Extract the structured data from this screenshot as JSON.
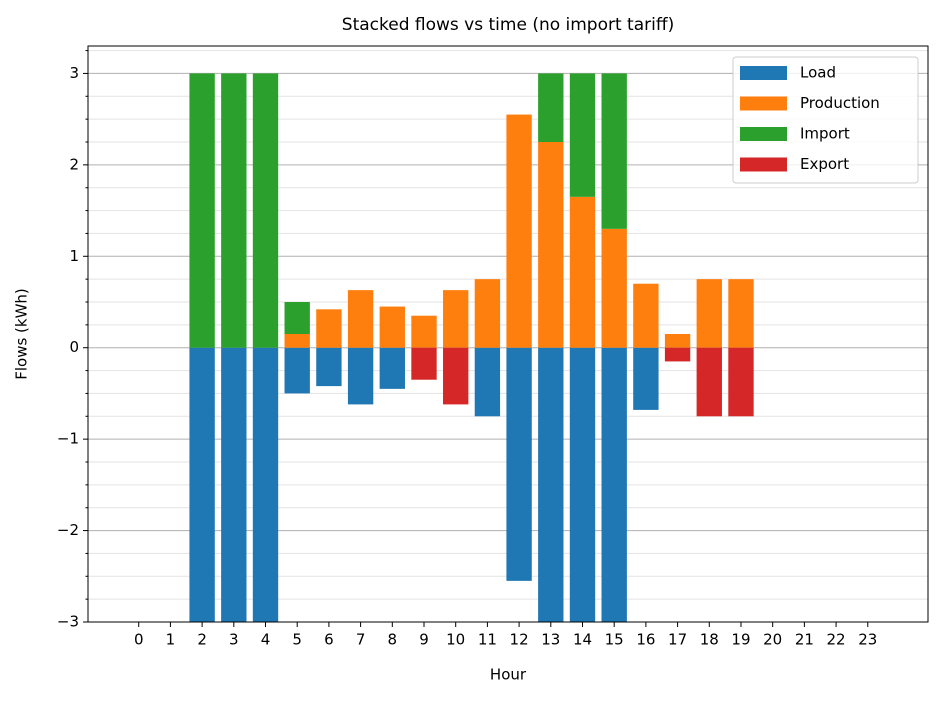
{
  "chart_data": {
    "type": "stacked_bar",
    "title": "Stacked flows vs time (no import tariff)",
    "xlabel": "Hour",
    "ylabel": "Flows (kWh)",
    "categories": [
      "0",
      "1",
      "2",
      "3",
      "4",
      "5",
      "6",
      "7",
      "8",
      "9",
      "10",
      "11",
      "12",
      "13",
      "14",
      "15",
      "16",
      "17",
      "18",
      "19",
      "20",
      "21",
      "22",
      "23"
    ],
    "series": [
      {
        "name": "Load",
        "color": "#1f77b4",
        "values": [
          0,
          0,
          -3,
          -3,
          -3,
          -0.5,
          -0.42,
          -0.62,
          -0.45,
          0,
          0,
          -0.75,
          -2.55,
          -3,
          -3,
          -3,
          -0.68,
          0,
          0,
          0,
          0,
          0,
          0,
          0
        ]
      },
      {
        "name": "Production",
        "color": "#ff7f0e",
        "values": [
          0,
          0,
          0,
          0,
          0,
          0.15,
          0.42,
          0.63,
          0.45,
          0.35,
          0.63,
          0.75,
          2.55,
          2.25,
          1.65,
          1.3,
          0.7,
          0.15,
          0.75,
          0.75,
          0,
          0,
          0,
          0
        ]
      },
      {
        "name": "Import",
        "color": "#2ca02c",
        "values": [
          0,
          0,
          3,
          3,
          3,
          0.35,
          0,
          0,
          0,
          0,
          0,
          0,
          0,
          0.75,
          1.35,
          1.7,
          0,
          0,
          0,
          0,
          0,
          0,
          0,
          0
        ]
      },
      {
        "name": "Export",
        "color": "#d62728",
        "values": [
          0,
          0,
          0,
          0,
          0,
          0,
          0,
          0,
          0,
          -0.35,
          -0.62,
          0,
          0,
          0,
          0,
          0,
          0,
          -0.15,
          -0.75,
          -0.75,
          0,
          0,
          0,
          0
        ]
      }
    ],
    "xlim": [
      -1.6,
      24.9
    ],
    "ylim": [
      -3,
      3.3
    ],
    "yticks": [
      {
        "value": -3,
        "label": "−3"
      },
      {
        "value": -2,
        "label": "−2"
      },
      {
        "value": -1,
        "label": "−1"
      },
      0,
      1,
      2,
      3
    ],
    "yminorticks": [
      -2.75,
      -2.5,
      -2.25,
      -1.75,
      -1.5,
      -1.25,
      -0.75,
      -0.5,
      -0.25,
      0.25,
      0.5,
      0.75,
      1.25,
      1.5,
      1.75,
      2.25,
      2.5,
      2.75,
      3.25
    ],
    "grid": true,
    "legend": "upper right"
  }
}
